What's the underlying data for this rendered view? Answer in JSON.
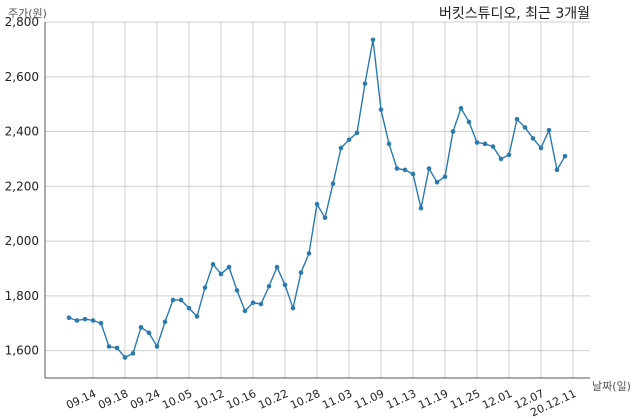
{
  "chart_data": {
    "type": "line",
    "title": "버킷스튜디오, 최근 3개월",
    "ylabel": "주가(원)",
    "xlabel": "날짜(일)",
    "ylim": [
      1500,
      2800
    ],
    "yticks": [
      1600,
      1800,
      2000,
      2200,
      2400,
      2600,
      2800
    ],
    "ytick_labels": [
      "1,600",
      "1,800",
      "2,000",
      "2,200",
      "2,400",
      "2,600",
      "2,800"
    ],
    "grid": true,
    "xtick_labels": [
      "09.14",
      "09.18",
      "09.24",
      "10.05",
      "10.12",
      "10.16",
      "10.22",
      "10.28",
      "11.03",
      "11.09",
      "11.13",
      "11.19",
      "11.25",
      "12.01",
      "12.07",
      "20.12.11"
    ],
    "xtick_positions": [
      3,
      7,
      11,
      15,
      19,
      23,
      27,
      31,
      35,
      39,
      43,
      47,
      51,
      55,
      59,
      63
    ],
    "series": [
      {
        "color": "#2a7ab0",
        "values": [
          1720,
          1710,
          1715,
          1710,
          1700,
          1615,
          1610,
          1575,
          1590,
          1685,
          1665,
          1615,
          1705,
          1785,
          1785,
          1755,
          1725,
          1830,
          1915,
          1880,
          1905,
          1820,
          1745,
          1775,
          1770,
          1835,
          1905,
          1840,
          1755,
          1885,
          1955,
          2135,
          2085,
          2210,
          2340,
          2370,
          2395,
          2575,
          2735,
          2480,
          2355,
          2265,
          2260,
          2245,
          2120,
          2265,
          2215,
          2235,
          2400,
          2485,
          2435,
          2360,
          2355,
          2345,
          2300,
          2315,
          2445,
          2415,
          2375,
          2340,
          2405,
          2260,
          2310
        ]
      }
    ]
  }
}
